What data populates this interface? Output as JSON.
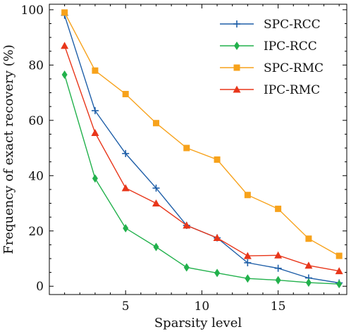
{
  "chart_data": {
    "type": "line",
    "xlabel": "Sparsity level",
    "ylabel": "Frequency of exact recovery (%)",
    "xlim": [
      0,
      19.5
    ],
    "ylim": [
      -3,
      102
    ],
    "xticks": [
      5,
      10,
      15
    ],
    "yticks": [
      0,
      20,
      40,
      60,
      80,
      100
    ],
    "x": [
      1,
      3,
      5,
      7,
      9,
      11,
      13,
      15,
      17,
      19
    ],
    "grid": false,
    "legend_position": "top-right",
    "series": [
      {
        "name": "SPC-RCC",
        "color": "#1f5fa8",
        "marker": "plus",
        "values": [
          98,
          63.5,
          48,
          35.5,
          22,
          17.5,
          8.5,
          6.5,
          3,
          1.2
        ]
      },
      {
        "name": "IPC-RCC",
        "color": "#22b14c",
        "marker": "diamond",
        "values": [
          76.5,
          39,
          21,
          14.2,
          6.8,
          4.8,
          2.8,
          2.2,
          1.3,
          0.8
        ]
      },
      {
        "name": "SPC-RMC",
        "color": "#f7a21b",
        "marker": "square",
        "values": [
          99,
          78,
          69.5,
          59,
          50,
          45.8,
          33,
          28,
          17.2,
          11
        ]
      },
      {
        "name": "IPC-RMC",
        "color": "#e8361a",
        "marker": "triangle",
        "values": [
          87,
          55.5,
          35.5,
          30,
          22,
          17.5,
          11,
          11.2,
          7.5,
          5.5
        ]
      }
    ]
  }
}
